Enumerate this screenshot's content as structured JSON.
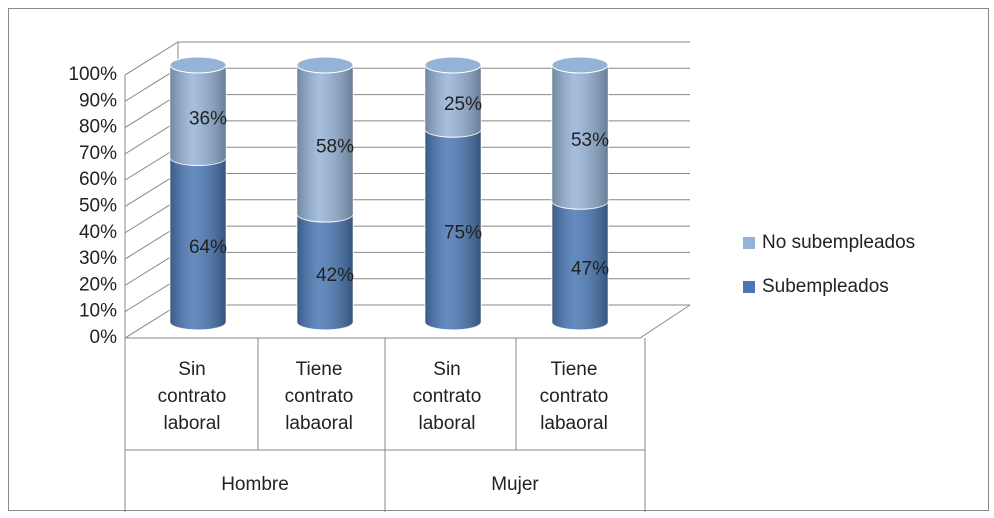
{
  "chart_data": {
    "type": "bar",
    "stacked": true,
    "categories": [
      "Sin contrato laboral",
      "Tiene contrato labaoral",
      "Sin contrato laboral",
      "Tiene contrato labaoral"
    ],
    "groups": [
      "Hombre",
      "Mujer"
    ],
    "series": [
      {
        "name": "Subempleados",
        "color": "#4a78b4",
        "values": [
          64,
          42,
          75,
          47
        ],
        "value_labels": [
          "64%",
          "42%",
          "75%",
          "47%"
        ]
      },
      {
        "name": "No subempleados",
        "color": "#95b3d7",
        "values": [
          36,
          58,
          25,
          53
        ],
        "value_labels": [
          "36%",
          "58%",
          "25%",
          "53%"
        ]
      }
    ],
    "ylim": [
      0,
      100
    ],
    "yticks": [
      {
        "value": 0,
        "label": "0%"
      },
      {
        "value": 10,
        "label": "10%"
      },
      {
        "value": 20,
        "label": "20%"
      },
      {
        "value": 30,
        "label": "30%"
      },
      {
        "value": 40,
        "label": "40%"
      },
      {
        "value": 50,
        "label": "50%"
      },
      {
        "value": 60,
        "label": "60%"
      },
      {
        "value": 70,
        "label": "70%"
      },
      {
        "value": 80,
        "label": "80%"
      },
      {
        "value": 90,
        "label": "90%"
      },
      {
        "value": 100,
        "label": "100%"
      }
    ],
    "grid": true,
    "legend": "right"
  }
}
